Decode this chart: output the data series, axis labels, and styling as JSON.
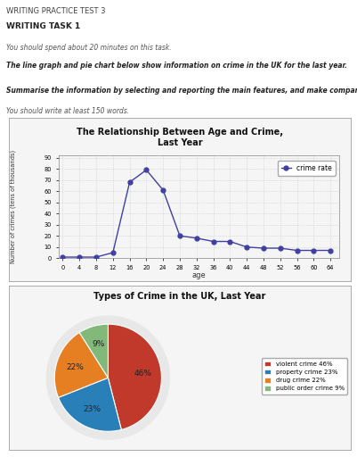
{
  "header_title": "WRITING PRACTICE TEST 3",
  "header_task": "WRITING TASK 1",
  "header_time": "You should spend about 20 minutes on this task.",
  "header_desc": "The line graph and pie chart below show information on crime in the UK for the last year.",
  "header_summ": "Summarise the information by selecting and reporting the main features, and make comparisons where relevant.",
  "header_words": "You should write at least 150 words.",
  "line_title": "The Relationship Between Age and Crime,\nLast Year",
  "line_xlabel": "age",
  "line_ylabel": "Number of crimes (tens of thousands)",
  "line_ages": [
    0,
    4,
    8,
    12,
    16,
    20,
    24,
    28,
    32,
    36,
    40,
    44,
    48,
    52,
    56,
    60,
    64
  ],
  "line_values": [
    1,
    1,
    1,
    5,
    68,
    79,
    61,
    20,
    18,
    15,
    15,
    10,
    9,
    9,
    7,
    7,
    7
  ],
  "line_color": "#4040a0",
  "line_marker": "o",
  "line_marker_size": 3.5,
  "line_yticks": [
    0,
    10,
    20,
    30,
    40,
    50,
    60,
    70,
    80,
    90
  ],
  "line_ylim": [
    0,
    92
  ],
  "line_xlim": [
    -1,
    66
  ],
  "legend_label": "crime rate",
  "pie_title": "Types of Crime in the UK, Last Year",
  "pie_sizes": [
    46,
    23,
    22,
    9
  ],
  "pie_colors": [
    "#c0392b",
    "#2980b9",
    "#e67e22",
    "#82b87a"
  ],
  "pie_pct_labels": [
    "46%",
    "23%",
    "22%",
    "9%"
  ],
  "pie_legend_labels": [
    "violent crime 46%",
    "property crime 23%",
    "drug crime 22%",
    "public order crime 9%"
  ],
  "pie_startangle": 90,
  "bg_color": "#ffffff",
  "grid_color": "#c8c8c8",
  "panel_bg": "#f5f5f5"
}
